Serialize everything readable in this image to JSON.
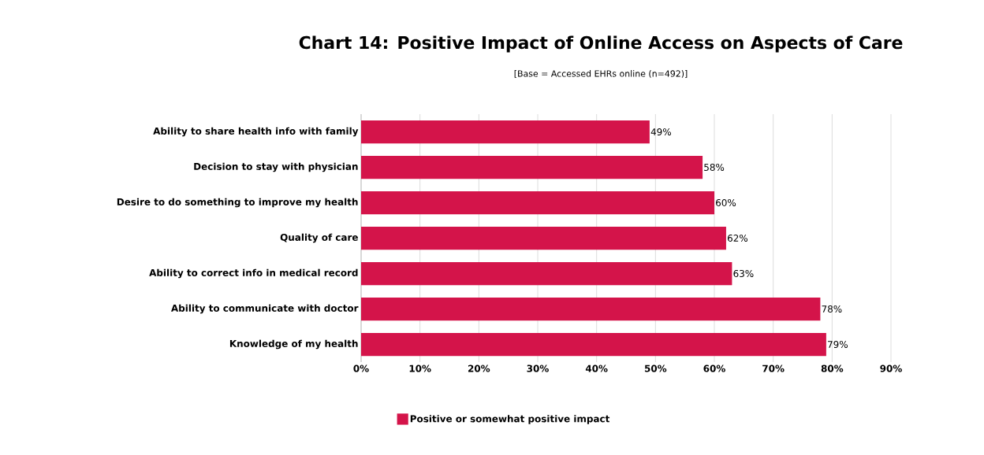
{
  "chart_data": {
    "type": "bar",
    "orientation": "horizontal",
    "title": "Chart 14: Positive Impact of Online Access on Aspects of Care",
    "subtitle": "[Base = Accessed EHRs online (n=492)]",
    "categories": [
      "Ability to share health info with family",
      "Decision to stay with physician",
      "Desire to do something to improve my health",
      "Quality of care",
      "Ability to correct info in medical record",
      "Ability to communicate with doctor",
      "Knowledge of my health"
    ],
    "series": [
      {
        "name": "Positive or somewhat positive impact",
        "color": "#d4144a",
        "values": [
          49,
          58,
          60,
          62,
          63,
          78,
          79
        ],
        "value_labels": [
          "49%",
          "58%",
          "60%",
          "62%",
          "63%",
          "78%",
          "79%"
        ]
      }
    ],
    "xlim": [
      0,
      90
    ],
    "xticks": [
      {
        "value": 0,
        "label": "0%"
      },
      {
        "value": 10,
        "label": "10%"
      },
      {
        "value": 20,
        "label": "20%"
      },
      {
        "value": 30,
        "label": "30%"
      },
      {
        "value": 40,
        "label": "40%"
      },
      {
        "value": 50,
        "label": "50%"
      },
      {
        "value": 60,
        "label": "60%"
      },
      {
        "value": 70,
        "label": "70%"
      },
      {
        "value": 80,
        "label": "80%"
      },
      {
        "value": 90,
        "label": "90%"
      }
    ],
    "grid": "x",
    "legend": "bottom"
  }
}
